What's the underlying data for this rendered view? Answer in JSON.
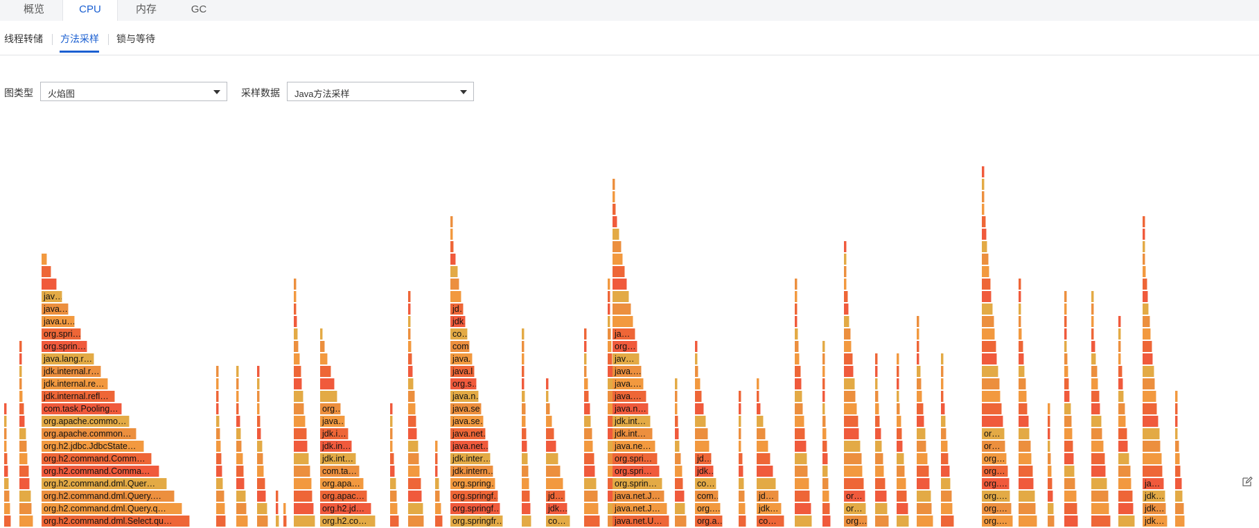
{
  "top_tabs": [
    "概览",
    "CPU",
    "内存",
    "GC"
  ],
  "active_top_tab": "CPU",
  "sub_tabs": [
    "线程转储",
    "方法采样",
    "锁与等待"
  ],
  "active_sub_tab": "方法采样",
  "filters": {
    "chart_type": {
      "label": "图类型",
      "value": "火焰图"
    },
    "sample_data": {
      "label": "采样数据",
      "value": "Java方法采样"
    }
  },
  "flame_colors": [
    "#f05a3c",
    "#f2993f",
    "#e3aa45",
    "#ee6637",
    "#ec8f3e"
  ],
  "flame_labels": {
    "stack_1": [
      "jav…",
      "java.…",
      "java.u…",
      "org.spri…",
      "org.sprin…",
      "java.lang.r…",
      "jdk.internal.r…",
      "jdk.internal.re…",
      "jdk.internal.refl…",
      "com.task.Pooling…",
      "org.apache.commo…",
      "org.apache.common…",
      "org.h2.jdbc.JdbcState…",
      "org.h2.command.Comm…",
      "org.h2.command.Comma…",
      "org.h2.command.dml.Quer…",
      "org.h2.command.dml.Query.…",
      "org.h2.command.dml.Query.q…",
      "org.h2.command.dml.Select.qu…"
    ],
    "stack_2": [
      "org…",
      "java…",
      "jdk.i…",
      "jdk.in…",
      "jdk.int…",
      "com.ta…",
      "org.apa…",
      "org.apac…",
      "org.h2.jd…",
      "org.h2.co…"
    ],
    "stack_3": [
      "jd…",
      "jdk…",
      "co…",
      "com…",
      "java.…",
      "java.l…",
      "org.s…",
      "java.n…",
      "java.se…",
      "java.se…",
      "java.net…",
      "java.net…",
      "jdk.inter…",
      "jdk.intern…",
      "org.spring…",
      "org.springf…",
      "org.springf…",
      "org.springfr…"
    ],
    "stack_4": [
      "jd…",
      "jdk…",
      "co…"
    ],
    "stack_5": [
      "ja…",
      "org…",
      "jav…",
      "java.…",
      "java.…",
      "java.…",
      "java.n…",
      "jdk.int…",
      "jdk.int…",
      "java.ne…",
      "org.spri…",
      "org.spri…",
      "org.sprin…",
      "java.net.J…",
      "java.net.J…",
      "java.net.U…"
    ],
    "stack_6": [
      "jd…",
      "jdk…",
      "co…",
      "com…",
      "org.…",
      "org.a…"
    ],
    "stack_7": [
      "jd…",
      "jdk…",
      "co…"
    ],
    "stack_8": [
      "or…",
      "or…",
      "org…"
    ],
    "stack_9": [
      "or…",
      "or…",
      "org…",
      "org…",
      "org.…",
      "org.…",
      "org.…",
      "org.…"
    ],
    "stack_10": [
      "ja…",
      "jdk…",
      "jdk…",
      "jdk…"
    ]
  },
  "icons": {
    "edit": "edit-icon"
  }
}
